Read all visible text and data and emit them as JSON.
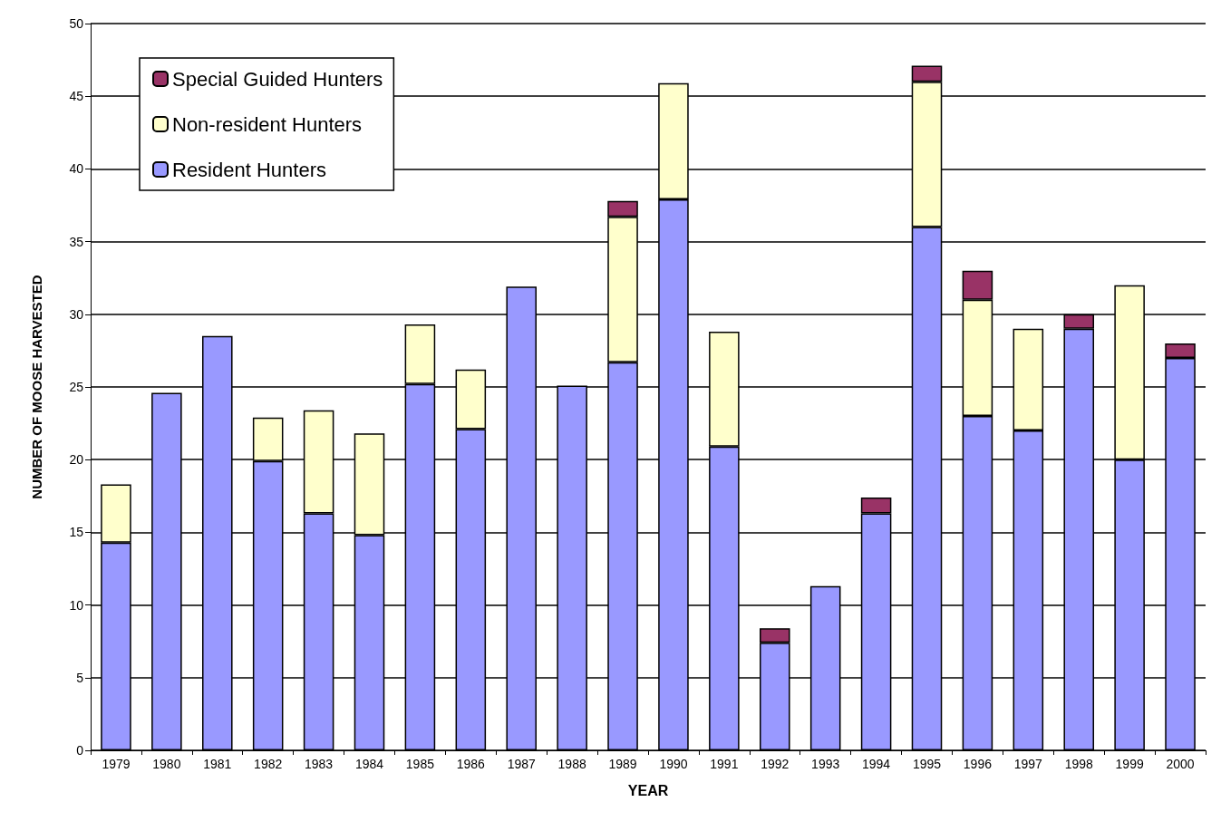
{
  "chart_data": {
    "type": "bar",
    "stacked": true,
    "xlabel": "YEAR",
    "ylabel": "NUMBER OF MOOSE HARVESTED",
    "categories": [
      "1979",
      "1980",
      "1981",
      "1982",
      "1983",
      "1984",
      "1985",
      "1986",
      "1987",
      "1988",
      "1989",
      "1990",
      "1991",
      "1992",
      "1993",
      "1994",
      "1995",
      "1996",
      "1997",
      "1998",
      "1999",
      "2000"
    ],
    "series": [
      {
        "name": "Resident Hunters",
        "color": "#9999ff",
        "values": [
          14.3,
          24.6,
          28.5,
          19.9,
          16.3,
          14.8,
          25.2,
          22.1,
          31.9,
          25.1,
          26.7,
          37.9,
          20.9,
          7.4,
          11.3,
          16.3,
          36,
          23,
          22,
          29,
          20,
          27
        ]
      },
      {
        "name": "Non-resident Hunters",
        "color": "#ffffcc",
        "values": [
          4,
          0,
          0,
          3,
          7.1,
          7,
          4.1,
          4.1,
          0,
          0,
          10,
          8,
          7.9,
          0,
          0,
          0,
          10,
          8,
          7,
          0,
          12,
          0
        ]
      },
      {
        "name": "Special Guided Hunters",
        "color": "#993366",
        "values": [
          0,
          0,
          0,
          0,
          0,
          0,
          0,
          0,
          0,
          0,
          1.1,
          0,
          0,
          1,
          0,
          1.1,
          1.1,
          2,
          0,
          1,
          0,
          1
        ]
      }
    ],
    "ylim": [
      0,
      50
    ],
    "yticks": [
      0,
      5,
      10,
      15,
      20,
      25,
      30,
      35,
      40,
      45,
      50
    ],
    "grid": "y",
    "legend": "top left"
  }
}
